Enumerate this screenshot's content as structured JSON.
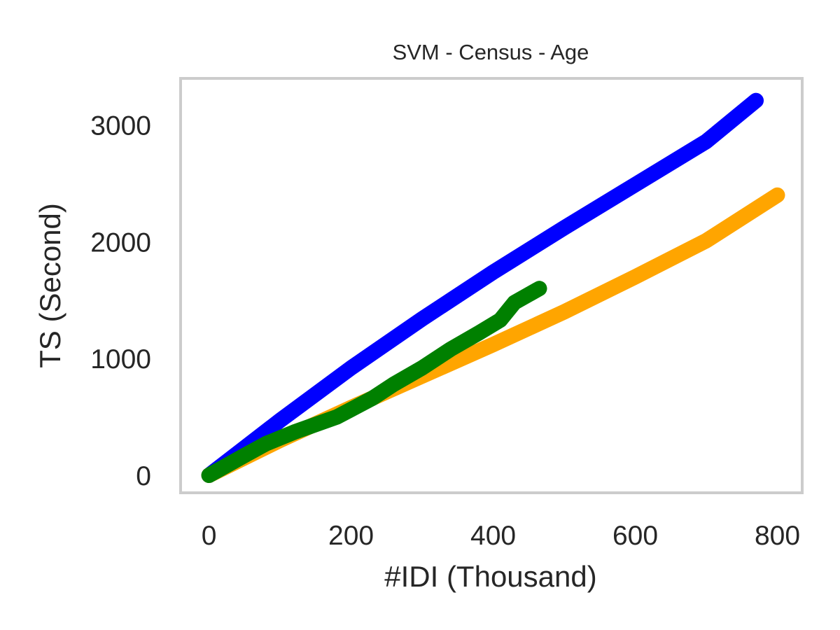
{
  "chart_data": {
    "type": "line",
    "title": "SVM - Census - Age",
    "xlabel": "#IDI (Thousand)",
    "ylabel": "TS (Second)",
    "xlim": [
      -40,
      835
    ],
    "ylim": [
      -150,
      3400
    ],
    "x_ticks": [
      0,
      200,
      400,
      600,
      800
    ],
    "y_ticks": [
      0,
      1000,
      2000,
      3000
    ],
    "x_tick_labels": [
      "0",
      "200",
      "400",
      "600",
      "800"
    ],
    "y_tick_labels": [
      "0",
      "1000",
      "2000",
      "3000"
    ],
    "grid": false,
    "legend": "none",
    "frame_color": "#cccccc",
    "series": [
      {
        "color": "#0000ff",
        "points": [
          [
            0,
            0
          ],
          [
            100,
            470
          ],
          [
            200,
            920
          ],
          [
            300,
            1340
          ],
          [
            400,
            1740
          ],
          [
            500,
            2120
          ],
          [
            600,
            2490
          ],
          [
            700,
            2860
          ],
          [
            770,
            3210
          ]
        ]
      },
      {
        "color": "#ffa500",
        "points": [
          [
            0,
            0
          ],
          [
            100,
            300
          ],
          [
            200,
            580
          ],
          [
            300,
            850
          ],
          [
            400,
            1120
          ],
          [
            500,
            1400
          ],
          [
            600,
            1700
          ],
          [
            700,
            2010
          ],
          [
            800,
            2400
          ]
        ]
      },
      {
        "color": "#008000",
        "points": [
          [
            0,
            0
          ],
          [
            50,
            170
          ],
          [
            80,
            270
          ],
          [
            120,
            370
          ],
          [
            180,
            500
          ],
          [
            230,
            660
          ],
          [
            260,
            780
          ],
          [
            300,
            920
          ],
          [
            340,
            1080
          ],
          [
            380,
            1220
          ],
          [
            410,
            1330
          ],
          [
            430,
            1480
          ],
          [
            465,
            1600
          ]
        ]
      }
    ]
  }
}
